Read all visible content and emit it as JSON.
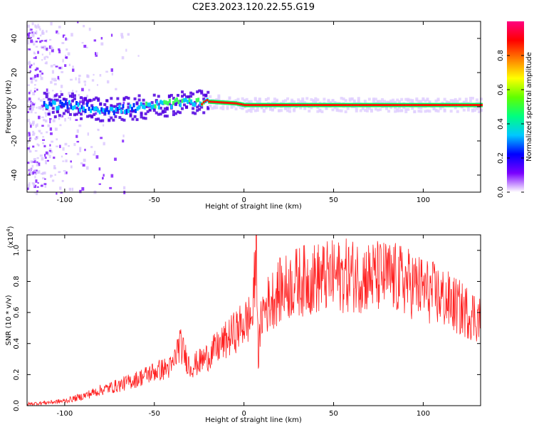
{
  "title": "C2E3.2023.120.22.55.G19",
  "chart_data": [
    {
      "type": "heatmap",
      "xlabel": "Height of straight line (km)",
      "ylabel": "Frequency (Hz)",
      "xlim": [
        -121,
        132
      ],
      "ylim": [
        -50,
        50
      ],
      "x_ticks": [
        -100,
        -50,
        0,
        50,
        100
      ],
      "y_ticks": [
        -40,
        -20,
        0,
        20,
        40
      ],
      "grid": false,
      "colorbar": {
        "label": "Normalized spectral amplitude",
        "range": [
          0,
          1
        ],
        "ticks": [
          "0.0",
          "0.2",
          "0.4",
          "0.6",
          "0.8"
        ],
        "colors": [
          "#ffffff",
          "#7a00ff",
          "#0000ff",
          "#00c8ff",
          "#00ff80",
          "#60ff00",
          "#ffff00",
          "#ff8000",
          "#ff0000",
          "#ff0080"
        ]
      },
      "ridge": {
        "description_points": [
          [
            -112,
            1
          ],
          [
            -100,
            1
          ],
          [
            -85,
            -1
          ],
          [
            -72,
            -2
          ],
          [
            -55,
            0
          ],
          [
            -40,
            2
          ],
          [
            -30,
            3
          ],
          [
            -20,
            3
          ],
          [
            -5,
            2
          ],
          [
            0,
            1
          ],
          [
            10,
            1
          ],
          [
            30,
            1
          ],
          [
            50,
            1
          ],
          [
            80,
            1
          ],
          [
            132,
            1
          ]
        ]
      }
    },
    {
      "type": "line",
      "xlabel": "Height of straight line (km)",
      "ylabel": "SNR (10 * v/v)",
      "y_multiplier": "(x10",
      "y_multiplier_exp": "4",
      "y_multiplier_close": ")",
      "xlim": [
        -121,
        132
      ],
      "ylim": [
        0,
        1.1
      ],
      "x_ticks": [
        -100,
        -50,
        0,
        50,
        100
      ],
      "y_ticks": [
        "0.0",
        "0.2",
        "0.4",
        "0.6",
        "0.8",
        "1.0"
      ],
      "grid": false,
      "series": [
        {
          "color": "#ff2020",
          "x": [
            -121,
            -110,
            -100,
            -90,
            -80,
            -70,
            -60,
            -50,
            -40,
            -36,
            -30,
            -25,
            -20,
            -10,
            0,
            5,
            7,
            8,
            10,
            15,
            20,
            30,
            40,
            50,
            60,
            70,
            80,
            90,
            100,
            110,
            120,
            132
          ],
          "y": [
            0.01,
            0.02,
            0.03,
            0.06,
            0.1,
            0.13,
            0.17,
            0.22,
            0.25,
            0.4,
            0.25,
            0.28,
            0.32,
            0.42,
            0.53,
            0.58,
            1.1,
            0.3,
            0.6,
            0.68,
            0.74,
            0.8,
            0.82,
            0.83,
            0.84,
            0.83,
            0.83,
            0.8,
            0.75,
            0.7,
            0.63,
            0.56
          ]
        }
      ]
    }
  ]
}
